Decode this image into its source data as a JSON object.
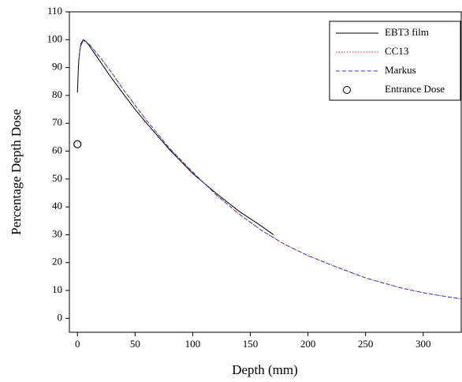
{
  "chart_data": {
    "type": "line",
    "xlabel": "Depth (mm)",
    "ylabel": "Percentage Depth Dose",
    "x": [
      0,
      1,
      2,
      3,
      5,
      7,
      10,
      15,
      20,
      30,
      40,
      50,
      60,
      80,
      100,
      120,
      140,
      160,
      170,
      180,
      200,
      220,
      250,
      280,
      300,
      320,
      333
    ],
    "series": [
      {
        "name": "EBT3 film",
        "color": "#000000",
        "style": "solid",
        "values": [
          81,
          92,
          96,
          98.5,
          100,
          99.5,
          98,
          95,
          92,
          86,
          80.5,
          75,
          70,
          60.5,
          52,
          45,
          38.5,
          33,
          30,
          null,
          null,
          null,
          null,
          null,
          null,
          null,
          null
        ]
      },
      {
        "name": "CC13",
        "color": "#e03030",
        "style": "dotted",
        "values": [
          null,
          91,
          96,
          98,
          99.5,
          99.5,
          98.5,
          96,
          93.5,
          88,
          82,
          76.5,
          71,
          61,
          52.5,
          44.5,
          37.5,
          31.5,
          29,
          26.5,
          22.5,
          19.2,
          14.5,
          11,
          9.2,
          7.8,
          7
        ]
      },
      {
        "name": "Markus",
        "color": "#3a3ad0",
        "style": "dashed",
        "values": [
          null,
          91,
          96,
          98,
          99.5,
          99.5,
          98.5,
          96,
          93.5,
          88,
          82,
          76.5,
          71,
          61,
          52.5,
          44.5,
          37.5,
          31.5,
          29,
          26.5,
          22.5,
          19.2,
          14.5,
          11,
          9.2,
          7.8,
          7
        ]
      },
      {
        "name": "Entrance Dose",
        "color": "#000000",
        "style": "marker",
        "x": [
          0
        ],
        "values": [
          62.5
        ]
      }
    ],
    "xlim": [
      -7,
      333
    ],
    "ylim": [
      -5,
      110
    ],
    "xticks": [
      0,
      50,
      100,
      150,
      200,
      250,
      300
    ],
    "yticks": [
      0,
      10,
      20,
      30,
      40,
      50,
      60,
      70,
      80,
      90,
      100,
      110
    ],
    "legend": "upper right"
  }
}
